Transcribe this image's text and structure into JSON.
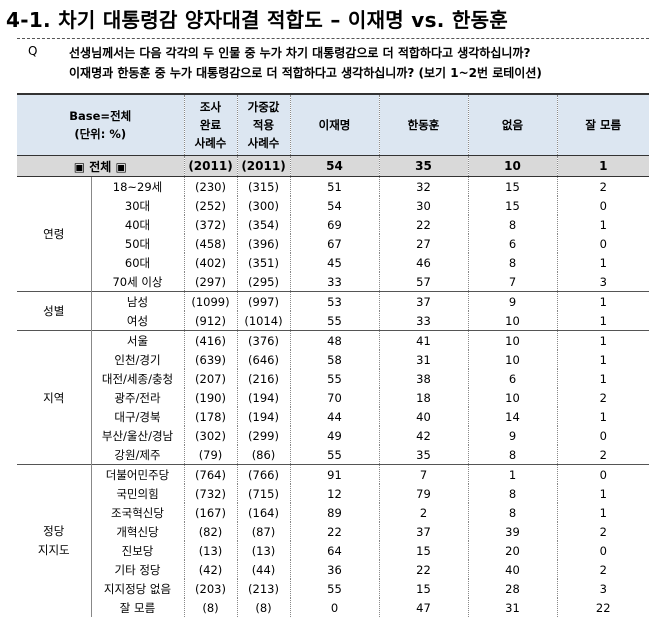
{
  "title": "4-1. 차기 대통령감 양자대결 적합도 – 이재명 vs. 한동훈",
  "question": {
    "mark": "Q",
    "line1": "선생님께서는 다음 각각의 두 인물 중 누가 차기 대통령감으로 더 적합하다고 생각하십니까?",
    "line2": "이재명과 한동훈 중 누가 대통령감으로 더 적합하다고 생각하십니까? (보기 1~2번 로테이션)"
  },
  "headers": {
    "base": "Base=전체",
    "unit": "(단위: %)",
    "completed": [
      "조사",
      "완료",
      "사례수"
    ],
    "weighted": [
      "가중값",
      "적용",
      "사례수"
    ],
    "col_lee": "이재명",
    "col_han": "한동훈",
    "col_none": "없음",
    "col_dk": "잘 모름"
  },
  "total": {
    "label": "▣ 전체 ▣",
    "n1": "(2011)",
    "n2": "(2011)",
    "lee": "54",
    "han": "35",
    "none": "10",
    "dk": "1"
  },
  "groups": [
    {
      "name": "연령",
      "rows": [
        {
          "label": "18~29세",
          "n1": "(230)",
          "n2": "(315)",
          "lee": "51",
          "han": "32",
          "none": "15",
          "dk": "2"
        },
        {
          "label": "30대",
          "n1": "(252)",
          "n2": "(300)",
          "lee": "54",
          "han": "30",
          "none": "15",
          "dk": "0"
        },
        {
          "label": "40대",
          "n1": "(372)",
          "n2": "(354)",
          "lee": "69",
          "han": "22",
          "none": "8",
          "dk": "1"
        },
        {
          "label": "50대",
          "n1": "(458)",
          "n2": "(396)",
          "lee": "67",
          "han": "27",
          "none": "6",
          "dk": "0"
        },
        {
          "label": "60대",
          "n1": "(402)",
          "n2": "(351)",
          "lee": "45",
          "han": "46",
          "none": "8",
          "dk": "1"
        },
        {
          "label": "70세 이상",
          "n1": "(297)",
          "n2": "(295)",
          "lee": "33",
          "han": "57",
          "none": "7",
          "dk": "3"
        }
      ]
    },
    {
      "name": "성별",
      "rows": [
        {
          "label": "남성",
          "n1": "(1099)",
          "n2": "(997)",
          "lee": "53",
          "han": "37",
          "none": "9",
          "dk": "1"
        },
        {
          "label": "여성",
          "n1": "(912)",
          "n2": "(1014)",
          "lee": "55",
          "han": "33",
          "none": "10",
          "dk": "1"
        }
      ]
    },
    {
      "name": "지역",
      "rows": [
        {
          "label": "서울",
          "n1": "(416)",
          "n2": "(376)",
          "lee": "48",
          "han": "41",
          "none": "10",
          "dk": "1"
        },
        {
          "label": "인천/경기",
          "n1": "(639)",
          "n2": "(646)",
          "lee": "58",
          "han": "31",
          "none": "10",
          "dk": "1"
        },
        {
          "label": "대전/세종/충청",
          "n1": "(207)",
          "n2": "(216)",
          "lee": "55",
          "han": "38",
          "none": "6",
          "dk": "1"
        },
        {
          "label": "광주/전라",
          "n1": "(190)",
          "n2": "(194)",
          "lee": "70",
          "han": "18",
          "none": "10",
          "dk": "2"
        },
        {
          "label": "대구/경북",
          "n1": "(178)",
          "n2": "(194)",
          "lee": "44",
          "han": "40",
          "none": "14",
          "dk": "1"
        },
        {
          "label": "부산/울산/경남",
          "n1": "(302)",
          "n2": "(299)",
          "lee": "49",
          "han": "42",
          "none": "9",
          "dk": "0"
        },
        {
          "label": "강원/제주",
          "n1": "(79)",
          "n2": "(86)",
          "lee": "55",
          "han": "35",
          "none": "8",
          "dk": "2"
        }
      ]
    },
    {
      "name": "정당 지지도",
      "name_lines": [
        "정당",
        "지지도"
      ],
      "rows": [
        {
          "label": "더불어민주당",
          "n1": "(764)",
          "n2": "(766)",
          "lee": "91",
          "han": "7",
          "none": "1",
          "dk": "0"
        },
        {
          "label": "국민의힘",
          "n1": "(732)",
          "n2": "(715)",
          "lee": "12",
          "han": "79",
          "none": "8",
          "dk": "1"
        },
        {
          "label": "조국혁신당",
          "n1": "(167)",
          "n2": "(164)",
          "lee": "89",
          "han": "2",
          "none": "8",
          "dk": "1"
        },
        {
          "label": "개혁신당",
          "n1": "(82)",
          "n2": "(87)",
          "lee": "22",
          "han": "37",
          "none": "39",
          "dk": "2"
        },
        {
          "label": "진보당",
          "n1": "(13)",
          "n2": "(13)",
          "lee": "64",
          "han": "15",
          "none": "20",
          "dk": "0"
        },
        {
          "label": "기타 정당",
          "n1": "(42)",
          "n2": "(44)",
          "lee": "36",
          "han": "22",
          "none": "40",
          "dk": "2"
        },
        {
          "label": "지지정당 없음",
          "n1": "(203)",
          "n2": "(213)",
          "lee": "55",
          "han": "15",
          "none": "28",
          "dk": "3"
        },
        {
          "label": "잘 모름",
          "n1": "(8)",
          "n2": "(8)",
          "lee": "0",
          "han": "47",
          "none": "31",
          "dk": "22"
        }
      ]
    }
  ]
}
